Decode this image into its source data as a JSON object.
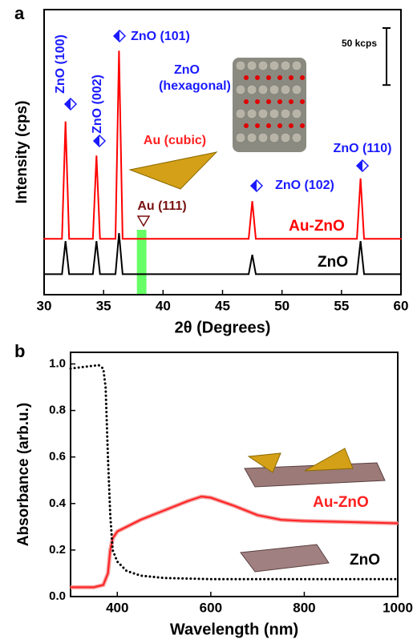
{
  "chart_data": [
    {
      "type": "line",
      "panel": "a",
      "x_label": "2θ (Degrees)",
      "y_label": "Intensity (cps)",
      "xlim": [
        30,
        60
      ],
      "xticks": [
        30,
        35,
        40,
        45,
        50,
        55,
        60
      ],
      "ylim": [
        0,
        250
      ],
      "series": [
        {
          "name": "Au-ZnO",
          "color": "#ff0000",
          "x": [
            30,
            31.5,
            31.8,
            32.1,
            34.1,
            34.4,
            34.7,
            36.0,
            36.3,
            36.6,
            47.2,
            47.5,
            47.8,
            56.3,
            56.6,
            56.9,
            60
          ],
          "values": [
            49,
            49,
            152,
            49,
            49,
            122,
            49,
            49,
            214,
            49,
            49,
            82,
            49,
            49,
            102,
            49,
            49
          ]
        },
        {
          "name": "ZnO",
          "color": "#000000",
          "x": [
            30,
            31.5,
            31.8,
            32.1,
            34.1,
            34.4,
            34.7,
            36.0,
            36.3,
            36.6,
            47.2,
            47.5,
            47.8,
            56.3,
            56.6,
            56.9,
            60
          ],
          "values": [
            18,
            18,
            47,
            18,
            18,
            47,
            18,
            18,
            54,
            18,
            18,
            35,
            18,
            18,
            47,
            18,
            18
          ]
        }
      ],
      "highlight": [
        37.8,
        38.6
      ],
      "highlight_color": "#66ff66",
      "scale_bar": {
        "label": "50 kcps",
        "value": 50
      },
      "annotations": [
        {
          "text": "ZnO (100)",
          "color": "#1a1aff"
        },
        {
          "text": "ZnO (002)",
          "color": "#1a1aff"
        },
        {
          "text": "ZnO (101)",
          "color": "#1a1aff"
        },
        {
          "text": "ZnO",
          "color": "#1a1aff"
        },
        {
          "text": "(hexagonal)",
          "color": "#1a1aff"
        },
        {
          "text": "Au (cubic)",
          "color": "#ff2020"
        },
        {
          "text": "Au (111)",
          "color": "#7a1010"
        },
        {
          "text": "ZnO (102)",
          "color": "#1a1aff"
        },
        {
          "text": "ZnO (110)",
          "color": "#1a1aff"
        }
      ]
    },
    {
      "type": "line",
      "panel": "b",
      "x_label": "Wavelength (nm)",
      "y_label": "Absorbance (arb.u.)",
      "xlim": [
        300,
        1000
      ],
      "xticks": [
        400,
        600,
        800,
        1000
      ],
      "ylim": [
        0,
        1.05
      ],
      "yticks": [
        {
          "value": 0,
          "label": "0.0"
        },
        0.2,
        0.4,
        0.6,
        0.8,
        {
          "value": 1,
          "label": "1.0"
        }
      ],
      "series": [
        {
          "name": "Au-ZnO",
          "color": "#ff2020",
          "x": [
            300,
            350,
            370,
            380,
            385,
            390,
            400,
            450,
            500,
            550,
            580,
            600,
            650,
            700,
            750,
            800,
            900,
            1000
          ],
          "values": [
            0.04,
            0.04,
            0.05,
            0.1,
            0.2,
            0.25,
            0.28,
            0.33,
            0.37,
            0.41,
            0.43,
            0.425,
            0.39,
            0.35,
            0.33,
            0.325,
            0.32,
            0.315
          ]
        },
        {
          "name": "ZnO",
          "color": "#000000",
          "x": [
            300,
            340,
            360,
            370,
            375,
            380,
            385,
            390,
            400,
            420,
            450,
            500,
            600,
            800,
            1000
          ],
          "values": [
            0.98,
            0.99,
            0.995,
            0.98,
            0.9,
            0.6,
            0.35,
            0.2,
            0.15,
            0.11,
            0.09,
            0.08,
            0.075,
            0.075,
            0.075
          ]
        }
      ]
    }
  ]
}
